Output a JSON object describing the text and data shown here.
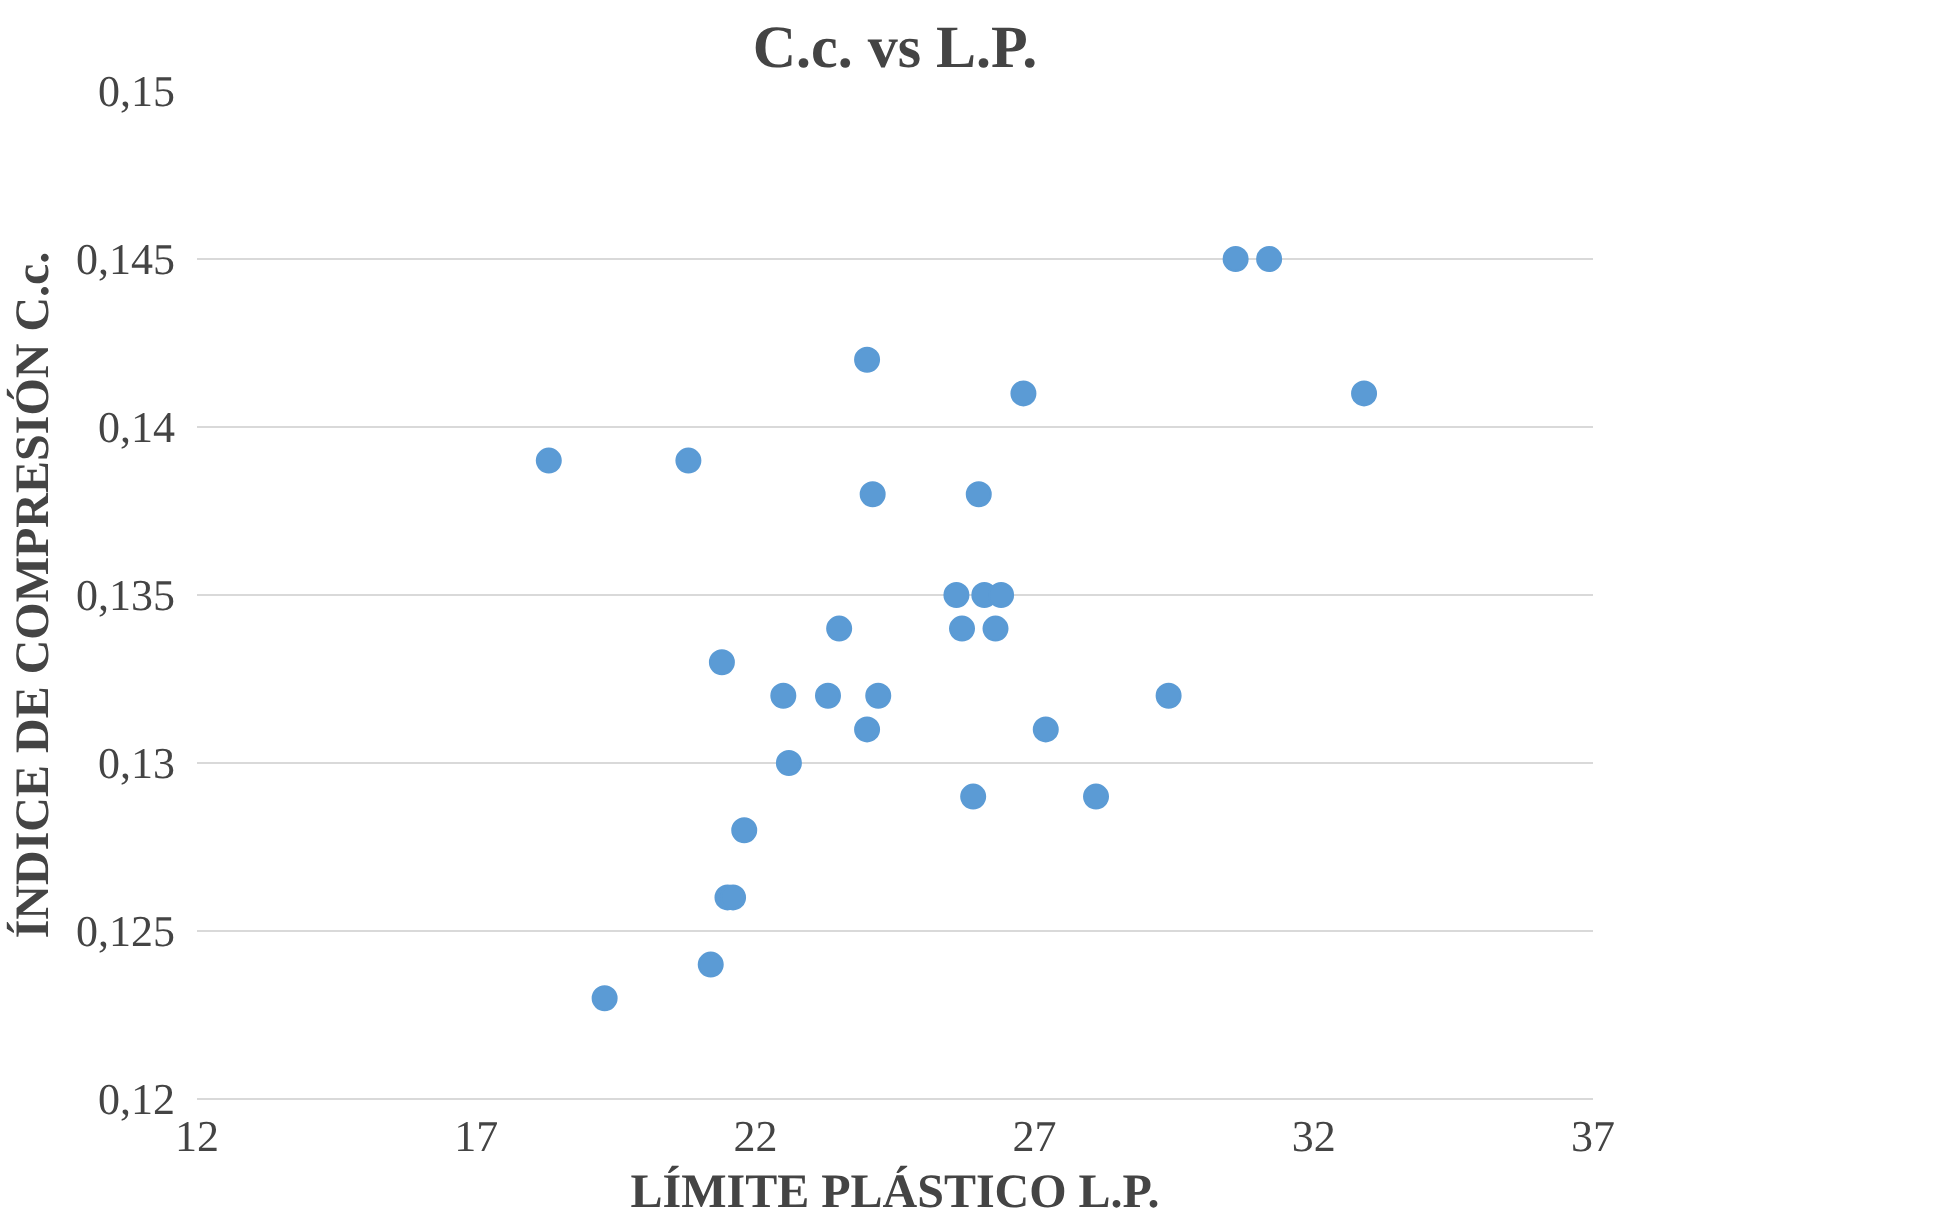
{
  "chart_data": {
    "type": "scatter",
    "title": "C.c. vs L.P.",
    "xlabel": "LÍMITE PLÁSTICO L.P.",
    "ylabel": "ÍNDICE DE COMPRESIÓN C.c.",
    "x": [
      18.3,
      19.3,
      20.8,
      21.2,
      21.4,
      21.5,
      21.6,
      21.8,
      22.5,
      22.6,
      23.3,
      23.5,
      24.0,
      24.0,
      24.1,
      24.2,
      25.6,
      25.7,
      25.9,
      26.0,
      26.1,
      26.3,
      26.4,
      26.8,
      27.2,
      28.1,
      29.4,
      30.6,
      31.2,
      32.9
    ],
    "series": [
      {
        "color": "#5b9bd5",
        "values": [
          0.139,
          0.123,
          0.139,
          0.124,
          0.133,
          0.126,
          0.126,
          0.128,
          0.132,
          0.13,
          0.132,
          0.134,
          0.131,
          0.142,
          0.138,
          0.132,
          0.135,
          0.134,
          0.129,
          0.138,
          0.135,
          0.134,
          0.135,
          0.141,
          0.131,
          0.129,
          0.132,
          0.145,
          0.145,
          0.141
        ]
      }
    ],
    "xlim": [
      12,
      37
    ],
    "xticks": [
      12,
      17,
      22,
      27,
      32,
      37
    ],
    "ylim": [
      0.12,
      0.15
    ],
    "yticks": [
      {
        "value": 0.12,
        "label": "0,12"
      },
      {
        "value": 0.125,
        "label": "0,125"
      },
      {
        "value": 0.13,
        "label": "0,13"
      },
      {
        "value": 0.135,
        "label": "0,135"
      },
      {
        "value": 0.14,
        "label": "0,14"
      },
      {
        "value": 0.145,
        "label": "0,145"
      },
      {
        "value": 0.15,
        "label": "0,15"
      }
    ],
    "grid": "y",
    "marker": "circle"
  }
}
